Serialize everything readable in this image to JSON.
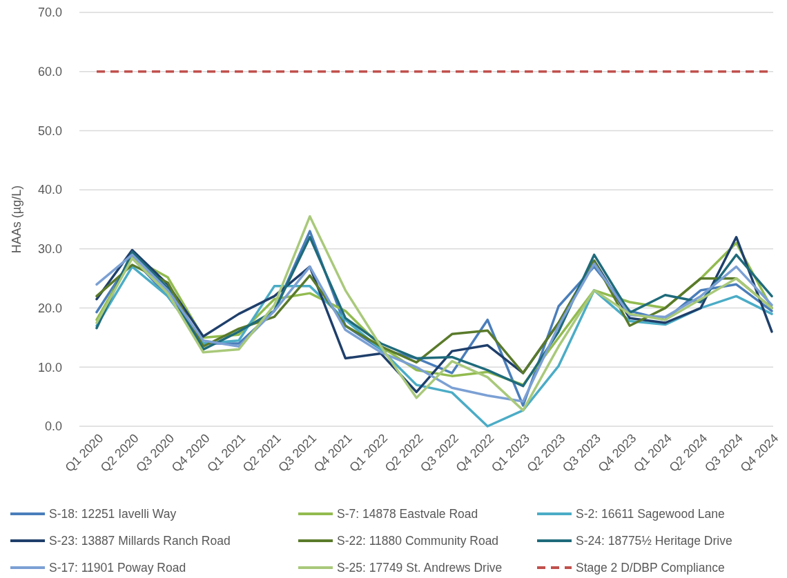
{
  "chart_data": {
    "type": "line",
    "ylabel": "HAAs (µg/L)",
    "categories": [
      "Q1 2020",
      "Q2 2020",
      "Q3 2020",
      "Q4 2020",
      "Q1 2021",
      "Q2 2021",
      "Q3 2021",
      "Q4 2021",
      "Q1 2022",
      "Q2 2022",
      "Q3 2022",
      "Q4 2022",
      "Q1 2023",
      "Q2 2023",
      "Q3 2023",
      "Q4 2023",
      "Q1 2024",
      "Q2 2024",
      "Q3 2024",
      "Q4 2024"
    ],
    "ylim": [
      0,
      70
    ],
    "yticks": [
      {
        "value": 0,
        "label": "0.0"
      },
      {
        "value": 10,
        "label": "10.0"
      },
      {
        "value": 20,
        "label": "20.0"
      },
      {
        "value": 30,
        "label": "30.0"
      },
      {
        "value": 40,
        "label": "40.0"
      },
      {
        "value": 50,
        "label": "50.0"
      },
      {
        "value": 60,
        "label": "60.0"
      },
      {
        "value": 70,
        "label": "70.0"
      }
    ],
    "grid": "y",
    "legend": "bottom",
    "marker": "none",
    "line_style": "solid",
    "series": [
      {
        "name": "S-18: 12251 Iavelli Way",
        "color": "#4a7ebb",
        "values": [
          19.3,
          28.5,
          22,
          14,
          14,
          19.5,
          33,
          17,
          13,
          11.5,
          9,
          18,
          3.5,
          20.3,
          27,
          19.5,
          18,
          23,
          24,
          19.5
        ]
      },
      {
        "name": "S-7: 14878 Eastvale Road",
        "color": "#92bb4f",
        "values": [
          18,
          28.5,
          25.2,
          15,
          15.5,
          21.5,
          22.5,
          19.5,
          13.5,
          9.5,
          8.5,
          9.2,
          7,
          15,
          23,
          21,
          20,
          25,
          31,
          20
        ]
      },
      {
        "name": "S-2: 16611 Sagewood Lane",
        "color": "#4bacc6",
        "values": [
          17,
          27,
          22,
          14,
          14.5,
          23.7,
          23.7,
          18,
          13,
          7,
          5.7,
          0,
          2.7,
          10.2,
          23,
          17.8,
          17.2,
          20,
          22,
          19
        ]
      },
      {
        "name": "S-23: 13887 Millards Ranch Road",
        "color": "#1f3f6b",
        "values": [
          21.5,
          29.8,
          24,
          15.2,
          19,
          22,
          27,
          11.5,
          12.3,
          5.8,
          12.7,
          13.7,
          9,
          17.5,
          28,
          18.3,
          17.5,
          20,
          32,
          16
        ]
      },
      {
        "name": "S-22: 11880 Community Road",
        "color": "#5a7a2a",
        "values": [
          22,
          27.3,
          24.3,
          13.5,
          16.5,
          18.5,
          25.5,
          17,
          13.5,
          10.8,
          15.6,
          16.2,
          9,
          17.5,
          28,
          17,
          20,
          25,
          25,
          20
        ]
      },
      {
        "name": "S-24: 18775½ Heritage Drive",
        "color": "#1f6b7b",
        "values": [
          16.6,
          29.5,
          23.4,
          13,
          16,
          19.5,
          32,
          18.3,
          14,
          11.5,
          11.7,
          9.5,
          6.8,
          16,
          29,
          19.2,
          22.2,
          21,
          29,
          22
        ]
      },
      {
        "name": "S-17: 11901 Poway Road",
        "color": "#7ba0d4",
        "values": [
          24,
          29,
          23,
          14.5,
          13.5,
          19.5,
          27,
          16.3,
          12.5,
          10,
          6.5,
          5.2,
          4.2,
          17,
          27.5,
          18.8,
          18.5,
          22,
          27,
          20.5
        ]
      },
      {
        "name": "S-25: 17749 St. Andrews Drive",
        "color": "#a9c97a",
        "values": [
          17.5,
          28.4,
          22.5,
          12.5,
          13,
          20.5,
          35.5,
          23,
          13.5,
          4.8,
          11,
          8.3,
          2.7,
          13.5,
          23,
          19,
          18,
          21.5,
          25,
          20
        ]
      }
    ],
    "ref_lines": [
      {
        "axis": "y",
        "value": 60,
        "label": "Stage 2 D/DBP Compliance",
        "color": "#c0504d",
        "line_style": "dashed"
      }
    ]
  }
}
